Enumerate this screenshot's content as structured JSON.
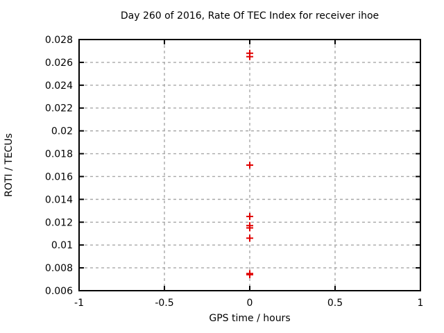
{
  "chart_data": {
    "type": "scatter",
    "title": "Day 260 of 2016, Rate Of TEC Index for receiver ihoe",
    "xlabel": "GPS time / hours",
    "ylabel": "ROTI / TECUs",
    "xlim": [
      -1,
      1
    ],
    "ylim": [
      0.006,
      0.028
    ],
    "grid": true,
    "legend": false,
    "x_ticks": [
      {
        "value": -1,
        "label": "-1"
      },
      {
        "value": -0.5,
        "label": "-0.5"
      },
      {
        "value": 0,
        "label": "0"
      },
      {
        "value": 0.5,
        "label": "0.5"
      },
      {
        "value": 1,
        "label": "1"
      }
    ],
    "y_ticks": [
      {
        "value": 0.006,
        "label": "0.006"
      },
      {
        "value": 0.008,
        "label": "0.008"
      },
      {
        "value": 0.01,
        "label": "0.01"
      },
      {
        "value": 0.012,
        "label": "0.012"
      },
      {
        "value": 0.014,
        "label": "0.014"
      },
      {
        "value": 0.016,
        "label": "0.016"
      },
      {
        "value": 0.018,
        "label": "0.018"
      },
      {
        "value": 0.02,
        "label": "0.02"
      },
      {
        "value": 0.022,
        "label": "0.022"
      },
      {
        "value": 0.024,
        "label": "0.024"
      },
      {
        "value": 0.026,
        "label": "0.026"
      },
      {
        "value": 0.028,
        "label": "0.028"
      }
    ],
    "series": [
      {
        "name": "ROTI",
        "marker": "plus",
        "points": [
          [
            0,
            0.0268
          ],
          [
            0,
            0.0265
          ],
          [
            0,
            0.017
          ],
          [
            0,
            0.0125
          ],
          [
            0,
            0.0117
          ],
          [
            0,
            0.0115
          ],
          [
            0,
            0.0106
          ],
          [
            0,
            0.0075
          ],
          [
            0,
            0.0074
          ]
        ]
      }
    ],
    "colors": {
      "marker": "#e00000",
      "grid": "#a8a8a8",
      "frame": "#000000",
      "text": "#000000"
    }
  }
}
